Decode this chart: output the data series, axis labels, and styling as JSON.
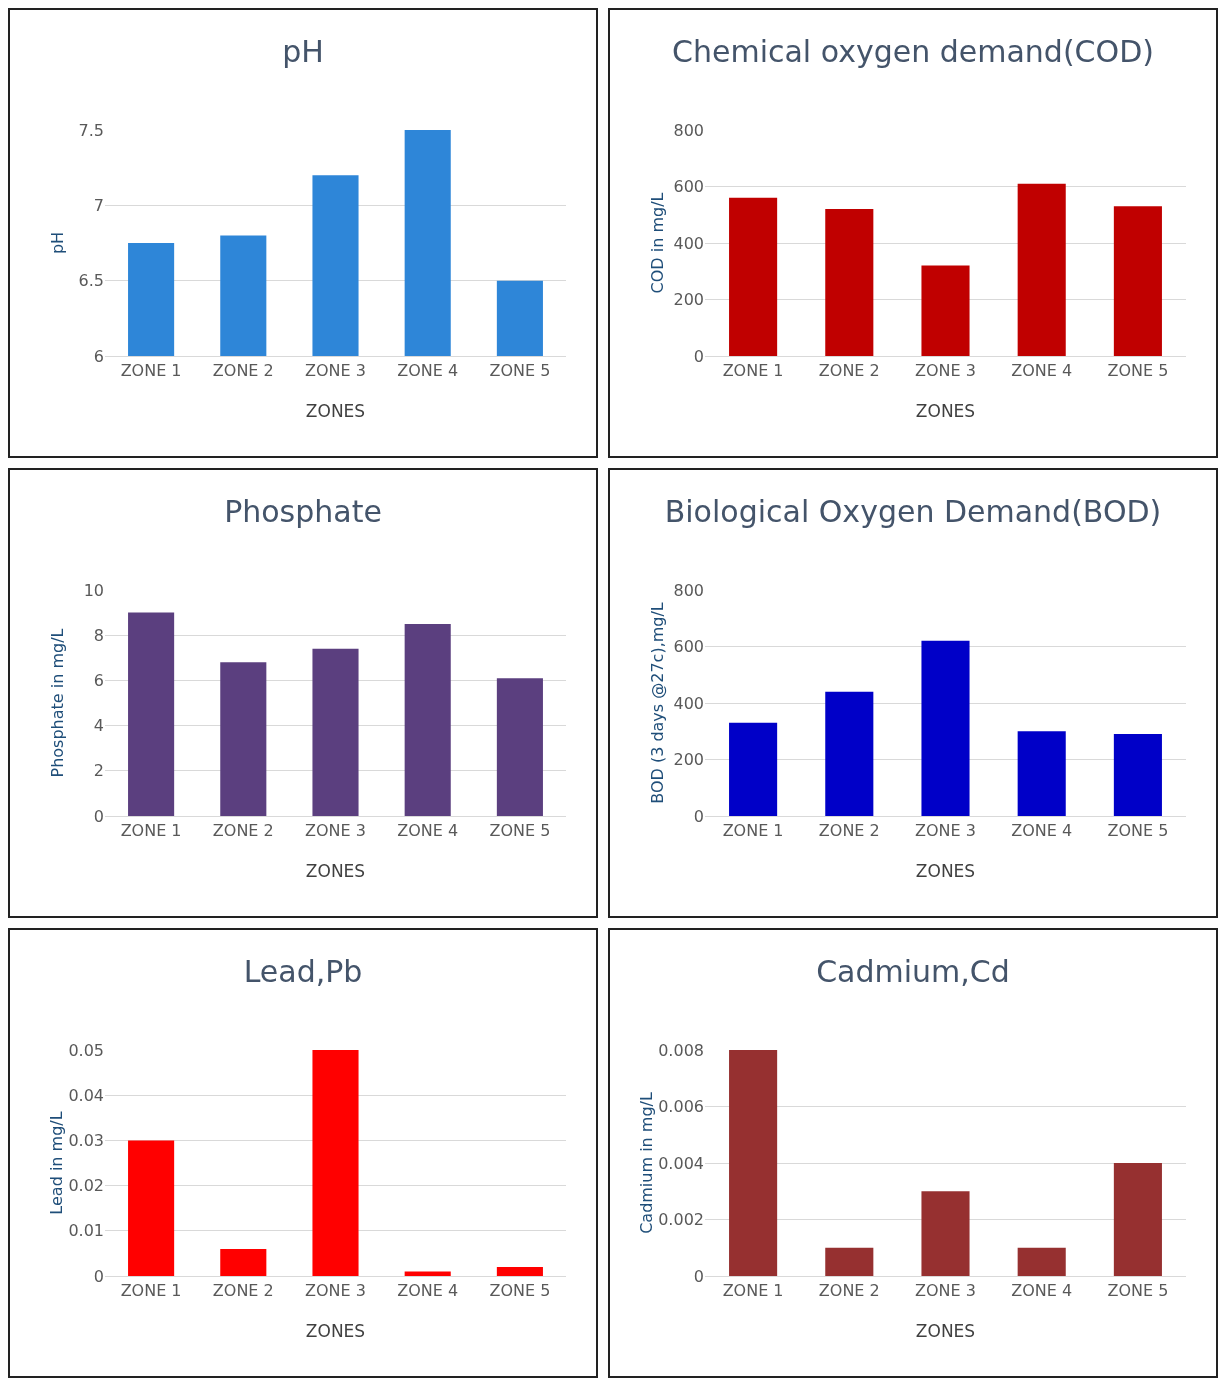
{
  "chart_data": [
    {
      "type": "bar",
      "title": "pH",
      "xlabel": "ZONES",
      "ylabel": "pH",
      "categories": [
        "ZONE 1",
        "ZONE 2",
        "ZONE 3",
        "ZONE 4",
        "ZONE 5"
      ],
      "values": [
        6.75,
        6.8,
        7.2,
        7.5,
        6.5
      ],
      "color": "#2e86d8",
      "ylim": [
        6,
        7.5
      ],
      "yticks": [
        6,
        6.5,
        7,
        7.5
      ],
      "grid": "y"
    },
    {
      "type": "bar",
      "title": "Chemical oxygen demand(COD)",
      "xlabel": "ZONES",
      "ylabel": "COD in mg/L",
      "categories": [
        "ZONE 1",
        "ZONE 2",
        "ZONE 3",
        "ZONE 4",
        "ZONE 5"
      ],
      "values": [
        560,
        520,
        320,
        610,
        530
      ],
      "color": "#c00000",
      "ylim": [
        0,
        800
      ],
      "yticks": [
        0,
        200,
        400,
        600,
        800
      ],
      "grid": "y"
    },
    {
      "type": "bar",
      "title": "Phosphate",
      "xlabel": "ZONES",
      "ylabel": "Phosphate in mg/L",
      "categories": [
        "ZONE 1",
        "ZONE 2",
        "ZONE 3",
        "ZONE 4",
        "ZONE 5"
      ],
      "values": [
        9,
        6.8,
        7.4,
        8.5,
        6.1
      ],
      "color": "#5b3f7f",
      "ylim": [
        0,
        10
      ],
      "yticks": [
        0,
        2,
        4,
        6,
        8,
        10
      ],
      "grid": "y"
    },
    {
      "type": "bar",
      "title": "Biological Oxygen Demand(BOD)",
      "xlabel": "ZONES",
      "ylabel": "BOD (3 days @27c),mg/L",
      "categories": [
        "ZONE 1",
        "ZONE 2",
        "ZONE 3",
        "ZONE 4",
        "ZONE 5"
      ],
      "values": [
        330,
        440,
        620,
        300,
        290
      ],
      "color": "#0000c8",
      "ylim": [
        0,
        800
      ],
      "yticks": [
        0,
        200,
        400,
        600,
        800
      ],
      "grid": "y"
    },
    {
      "type": "bar",
      "title": "Lead,Pb",
      "xlabel": "ZONES",
      "ylabel": "Lead in mg/L",
      "categories": [
        "ZONE 1",
        "ZONE 2",
        "ZONE 3",
        "ZONE 4",
        "ZONE 5"
      ],
      "values": [
        0.03,
        0.006,
        0.05,
        0.001,
        0.002
      ],
      "color": "#ff0000",
      "ylim": [
        0,
        0.05
      ],
      "yticks": [
        0,
        0.01,
        0.02,
        0.03,
        0.04,
        0.05
      ],
      "grid": "y"
    },
    {
      "type": "bar",
      "title": "Cadmium,Cd",
      "xlabel": "ZONES",
      "ylabel": "Cadmium in mg/L",
      "categories": [
        "ZONE 1",
        "ZONE 2",
        "ZONE 3",
        "ZONE 4",
        "ZONE 5"
      ],
      "values": [
        0.008,
        0.001,
        0.003,
        0.001,
        0.004
      ],
      "color": "#963030",
      "ylim": [
        0,
        0.008
      ],
      "yticks": [
        0,
        0.002,
        0.004,
        0.006,
        0.008
      ],
      "grid": "y"
    }
  ]
}
